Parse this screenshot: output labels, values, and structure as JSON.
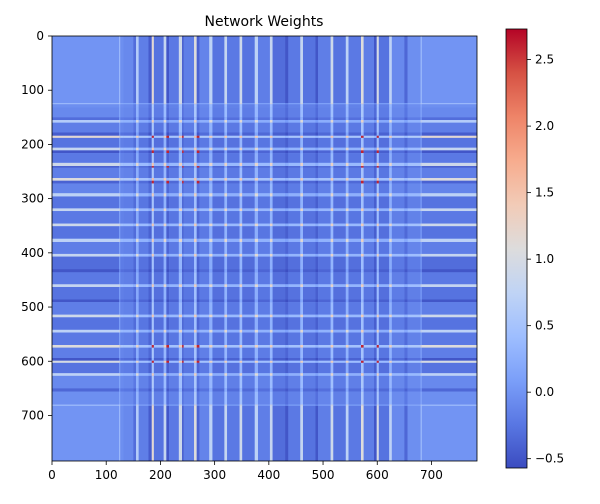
{
  "chart_data": {
    "type": "heatmap",
    "title": "Network Weights",
    "xlabel": "",
    "ylabel": "",
    "n": 784,
    "x_range": [
      0,
      784
    ],
    "y_range": [
      0,
      784
    ],
    "y_inverted": true,
    "x_ticks": [
      0,
      100,
      200,
      300,
      400,
      500,
      600,
      700
    ],
    "y_ticks": [
      0,
      100,
      200,
      300,
      400,
      500,
      600,
      700
    ],
    "colormap": "coolwarm",
    "colormap_stops": [
      "#3b4cc0",
      "#5977e3",
      "#7b9ff9",
      "#9ebeff",
      "#c0d4f5",
      "#dddcdc",
      "#f2cbb7",
      "#f7ac8e",
      "#ee8468",
      "#d65244",
      "#b40426"
    ],
    "value_range": [
      -0.57,
      2.73
    ],
    "colorbar_ticks": [
      -0.5,
      0.0,
      0.5,
      1.0,
      1.5,
      2.0,
      2.5
    ],
    "colorbar_tick_labels": [
      "−0.5",
      "0.0",
      "0.5",
      "1.0",
      "1.5",
      "2.0",
      "2.5"
    ],
    "background_value": 0.0,
    "active_band": [
      124,
      682
    ],
    "profile_ranges": [
      {
        "start": 0,
        "end": 124,
        "value": 0.0
      },
      {
        "start": 124,
        "end": 126,
        "value": 0.55
      },
      {
        "start": 126,
        "end": 132,
        "value": -0.05
      },
      {
        "start": 132,
        "end": 150,
        "value": -0.1
      },
      {
        "start": 150,
        "end": 155,
        "value": -0.35
      },
      {
        "start": 155,
        "end": 160,
        "value": 0.7
      },
      {
        "start": 160,
        "end": 178,
        "value": -0.2
      },
      {
        "start": 178,
        "end": 184,
        "value": -0.5
      },
      {
        "start": 184,
        "end": 188,
        "value": 1.3
      },
      {
        "start": 188,
        "end": 206,
        "value": -0.3
      },
      {
        "start": 206,
        "end": 211,
        "value": 0.9
      },
      {
        "start": 211,
        "end": 216,
        "value": -0.55
      },
      {
        "start": 216,
        "end": 234,
        "value": -0.25
      },
      {
        "start": 234,
        "end": 240,
        "value": 1.0
      },
      {
        "start": 240,
        "end": 243,
        "value": -0.5
      },
      {
        "start": 243,
        "end": 262,
        "value": -0.2
      },
      {
        "start": 262,
        "end": 267,
        "value": 1.2
      },
      {
        "start": 267,
        "end": 272,
        "value": -0.45
      },
      {
        "start": 272,
        "end": 290,
        "value": -0.15
      },
      {
        "start": 290,
        "end": 296,
        "value": 0.8
      },
      {
        "start": 296,
        "end": 318,
        "value": -0.3
      },
      {
        "start": 318,
        "end": 323,
        "value": 0.9
      },
      {
        "start": 323,
        "end": 346,
        "value": -0.25
      },
      {
        "start": 346,
        "end": 351,
        "value": 1.0
      },
      {
        "start": 351,
        "end": 374,
        "value": -0.3
      },
      {
        "start": 374,
        "end": 380,
        "value": 0.8
      },
      {
        "start": 380,
        "end": 402,
        "value": -0.2
      },
      {
        "start": 402,
        "end": 407,
        "value": 0.9
      },
      {
        "start": 407,
        "end": 430,
        "value": -0.35
      },
      {
        "start": 430,
        "end": 436,
        "value": -0.55
      },
      {
        "start": 436,
        "end": 458,
        "value": -0.25
      },
      {
        "start": 458,
        "end": 463,
        "value": 0.9
      },
      {
        "start": 463,
        "end": 486,
        "value": -0.3
      },
      {
        "start": 486,
        "end": 491,
        "value": -0.55
      },
      {
        "start": 491,
        "end": 514,
        "value": -0.2
      },
      {
        "start": 514,
        "end": 519,
        "value": 1.0
      },
      {
        "start": 519,
        "end": 542,
        "value": -0.3
      },
      {
        "start": 542,
        "end": 547,
        "value": 0.8
      },
      {
        "start": 547,
        "end": 570,
        "value": -0.25
      },
      {
        "start": 570,
        "end": 575,
        "value": 1.2
      },
      {
        "start": 575,
        "end": 594,
        "value": -0.2
      },
      {
        "start": 594,
        "end": 599,
        "value": -0.55
      },
      {
        "start": 599,
        "end": 603,
        "value": 1.1
      },
      {
        "start": 603,
        "end": 622,
        "value": -0.3
      },
      {
        "start": 622,
        "end": 627,
        "value": 0.8
      },
      {
        "start": 627,
        "end": 650,
        "value": -0.1
      },
      {
        "start": 650,
        "end": 656,
        "value": -0.4
      },
      {
        "start": 656,
        "end": 680,
        "value": -0.05
      },
      {
        "start": 680,
        "end": 682,
        "value": 0.55
      },
      {
        "start": 682,
        "end": 784,
        "value": 0.0
      }
    ],
    "hot_lines": [
      184,
      212,
      240,
      268,
      573,
      600
    ],
    "hot_value": 2.6
  }
}
